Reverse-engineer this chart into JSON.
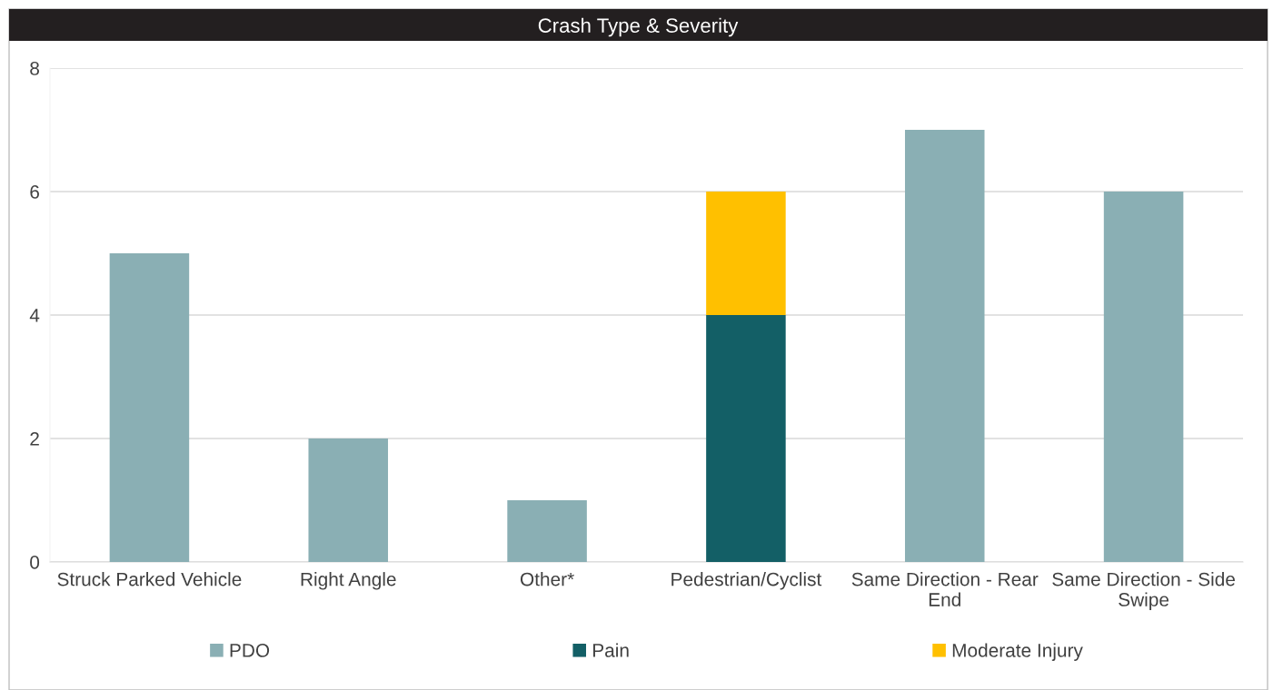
{
  "chart_data": {
    "type": "bar",
    "title": "Crash Type & Severity",
    "stacked": true,
    "categories": [
      "Struck Parked Vehicle",
      "Right Angle",
      "Other*",
      "Pedestrian/Cyclist",
      "Same Direction - Rear End",
      "Same Direction - Side Swipe"
    ],
    "series": [
      {
        "name": "PDO",
        "color": "#8aafb4",
        "values": [
          5,
          2,
          1,
          0,
          7,
          6
        ]
      },
      {
        "name": "Pain",
        "color": "#135f66",
        "values": [
          0,
          0,
          0,
          4,
          0,
          0
        ]
      },
      {
        "name": "Moderate Injury",
        "color": "#ffc000",
        "values": [
          0,
          0,
          0,
          2,
          0,
          0
        ]
      }
    ],
    "ylim": [
      0,
      8
    ],
    "yticks": [
      0,
      2,
      4,
      6,
      8
    ],
    "grid": "y",
    "legend": "bottom"
  }
}
